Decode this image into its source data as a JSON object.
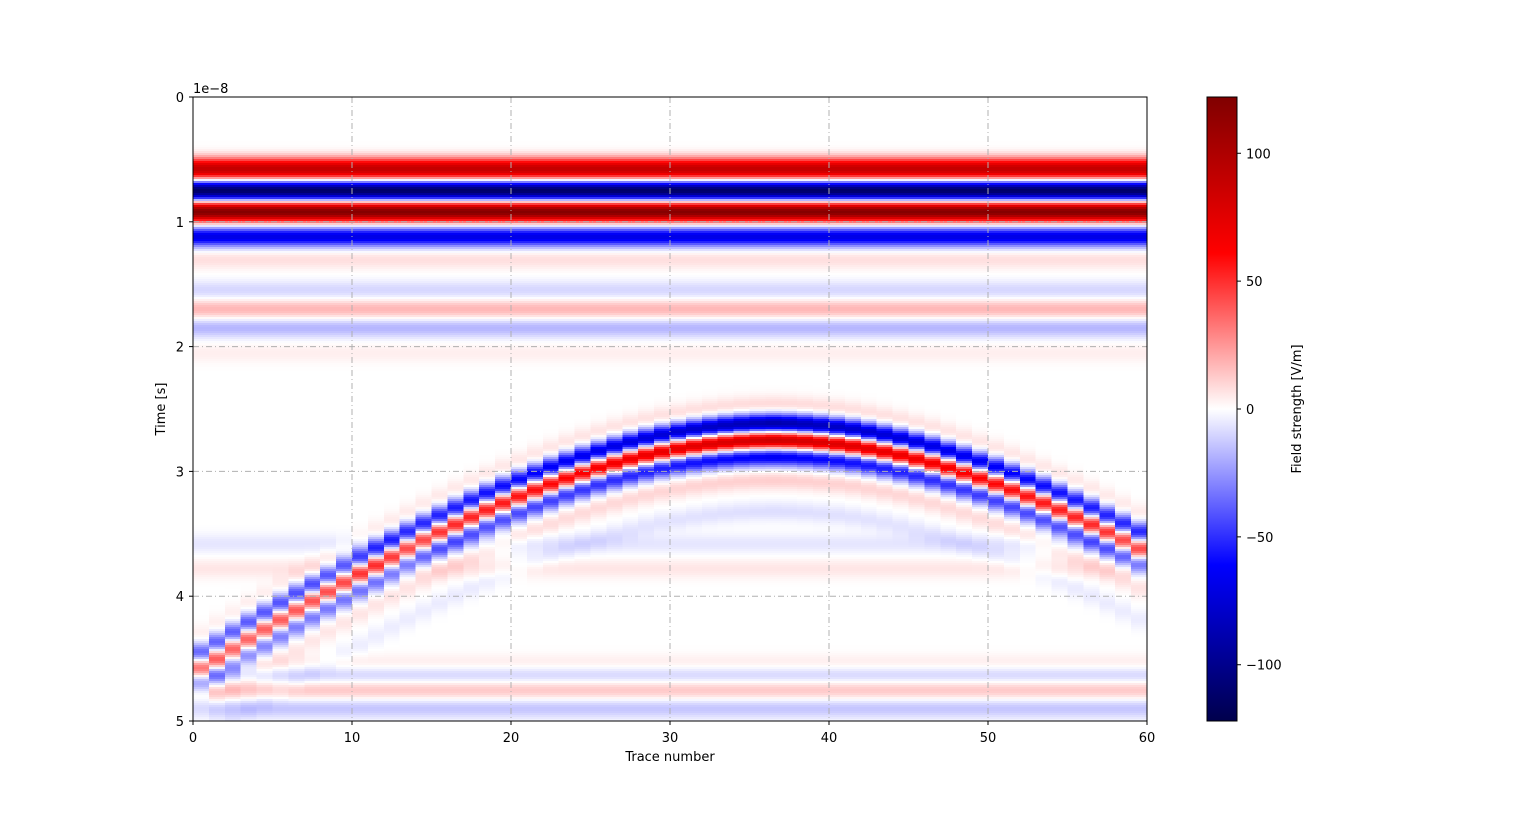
{
  "chart_data": {
    "type": "heatmap",
    "title": "",
    "xlabel": "Trace number",
    "ylabel": "Time [s]",
    "y_offset_text": "1e−8",
    "colorbar_label": "Field strength [V/m]",
    "colormap": "seismic",
    "x_range": [
      0,
      60
    ],
    "y_range": [
      0,
      5
    ],
    "y_inverted": true,
    "x_ticks": [
      "0",
      "10",
      "20",
      "30",
      "40",
      "50",
      "60"
    ],
    "y_ticks": [
      "0",
      "1",
      "2",
      "3",
      "4",
      "5"
    ],
    "colorbar_range": [
      -122,
      122
    ],
    "colorbar_ticks": [
      {
        "value": 100,
        "label": "100"
      },
      {
        "value": 50,
        "label": "50"
      },
      {
        "value": 0,
        "label": "0"
      },
      {
        "value": -50,
        "label": "−50"
      },
      {
        "value": -100,
        "label": "−100"
      }
    ],
    "grid": true,
    "traces": 60,
    "direct_wave_bands": [
      {
        "time": 0.55,
        "value": 45
      },
      {
        "time": 0.6,
        "value": 55
      },
      {
        "time": 0.75,
        "value": -115
      },
      {
        "time": 0.92,
        "value": 120
      },
      {
        "time": 1.12,
        "value": -70
      },
      {
        "time": 1.3,
        "value": 8
      },
      {
        "time": 1.55,
        "value": -10
      },
      {
        "time": 1.7,
        "value": 18
      },
      {
        "time": 1.85,
        "value": -18
      },
      {
        "time": 2.05,
        "value": 4
      }
    ],
    "hyperbola": {
      "apex_trace": 36.5,
      "apex_time": 2.62,
      "velocity_factor": 0.1,
      "wavelet": [
        {
          "offset": -0.15,
          "value": 10
        },
        {
          "offset": 0.0,
          "value": -95
        },
        {
          "offset": 0.13,
          "value": 95
        },
        {
          "offset": 0.26,
          "value": -70
        },
        {
          "offset": 0.45,
          "value": 12
        },
        {
          "offset": 0.7,
          "value": -8
        }
      ]
    },
    "multiple_bands": [
      {
        "time": 3.58,
        "value": -6
      },
      {
        "time": 3.78,
        "value": 6
      },
      {
        "time": 4.55,
        "value": 6
      },
      {
        "time": 4.63,
        "value": -12
      },
      {
        "time": 4.75,
        "value": 14
      },
      {
        "time": 4.9,
        "value": -14
      }
    ],
    "colors": {
      "grid": "#b0b0b0",
      "axis": "#000000"
    }
  }
}
